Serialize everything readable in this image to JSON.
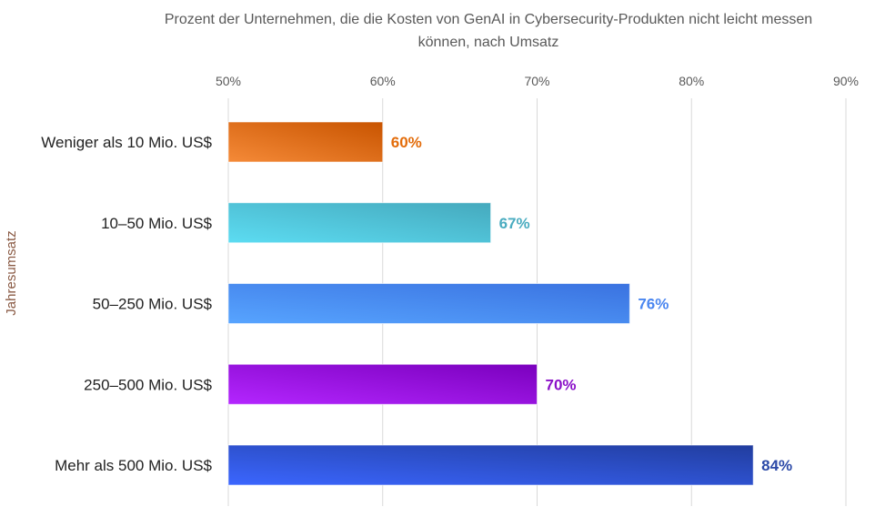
{
  "chart_data": {
    "type": "bar",
    "orientation": "horizontal",
    "title": [
      "Prozent der Unternehmen, die die Kosten von GenAI in Cybersecurity-Produkten nicht leicht messen",
      "können, nach Umsatz"
    ],
    "xlabel": "",
    "ylabel": "Jahresumsatz",
    "xlim": [
      50,
      90
    ],
    "xticks": [
      50,
      60,
      70,
      80,
      90
    ],
    "xtick_labels": [
      "50%",
      "60%",
      "70%",
      "80%",
      "90%"
    ],
    "grid": true,
    "categories": [
      "Weniger als 10 Mio. US$",
      "10–50 Mio. US$",
      "50–250 Mio. US$",
      "250–500 Mio. US$",
      "Mehr als 500 Mio. US$"
    ],
    "values": [
      60,
      67,
      76,
      70,
      84
    ],
    "data_labels": [
      "60%",
      "67%",
      "76%",
      "70%",
      "84%"
    ],
    "colors": [
      {
        "light": "#f58a38",
        "dark": "#c85400",
        "label": "#e36c0a"
      },
      {
        "light": "#5cdcf2",
        "dark": "#45a9bd",
        "label": "#4aacc0"
      },
      {
        "light": "#57a4ff",
        "dark": "#3a72e0",
        "label": "#4a86f0"
      },
      {
        "light": "#b426ff",
        "dark": "#7a00bd",
        "label": "#8a10c8"
      },
      {
        "light": "#3b66ff",
        "dark": "#213d9e",
        "label": "#2c4aa8"
      }
    ]
  }
}
